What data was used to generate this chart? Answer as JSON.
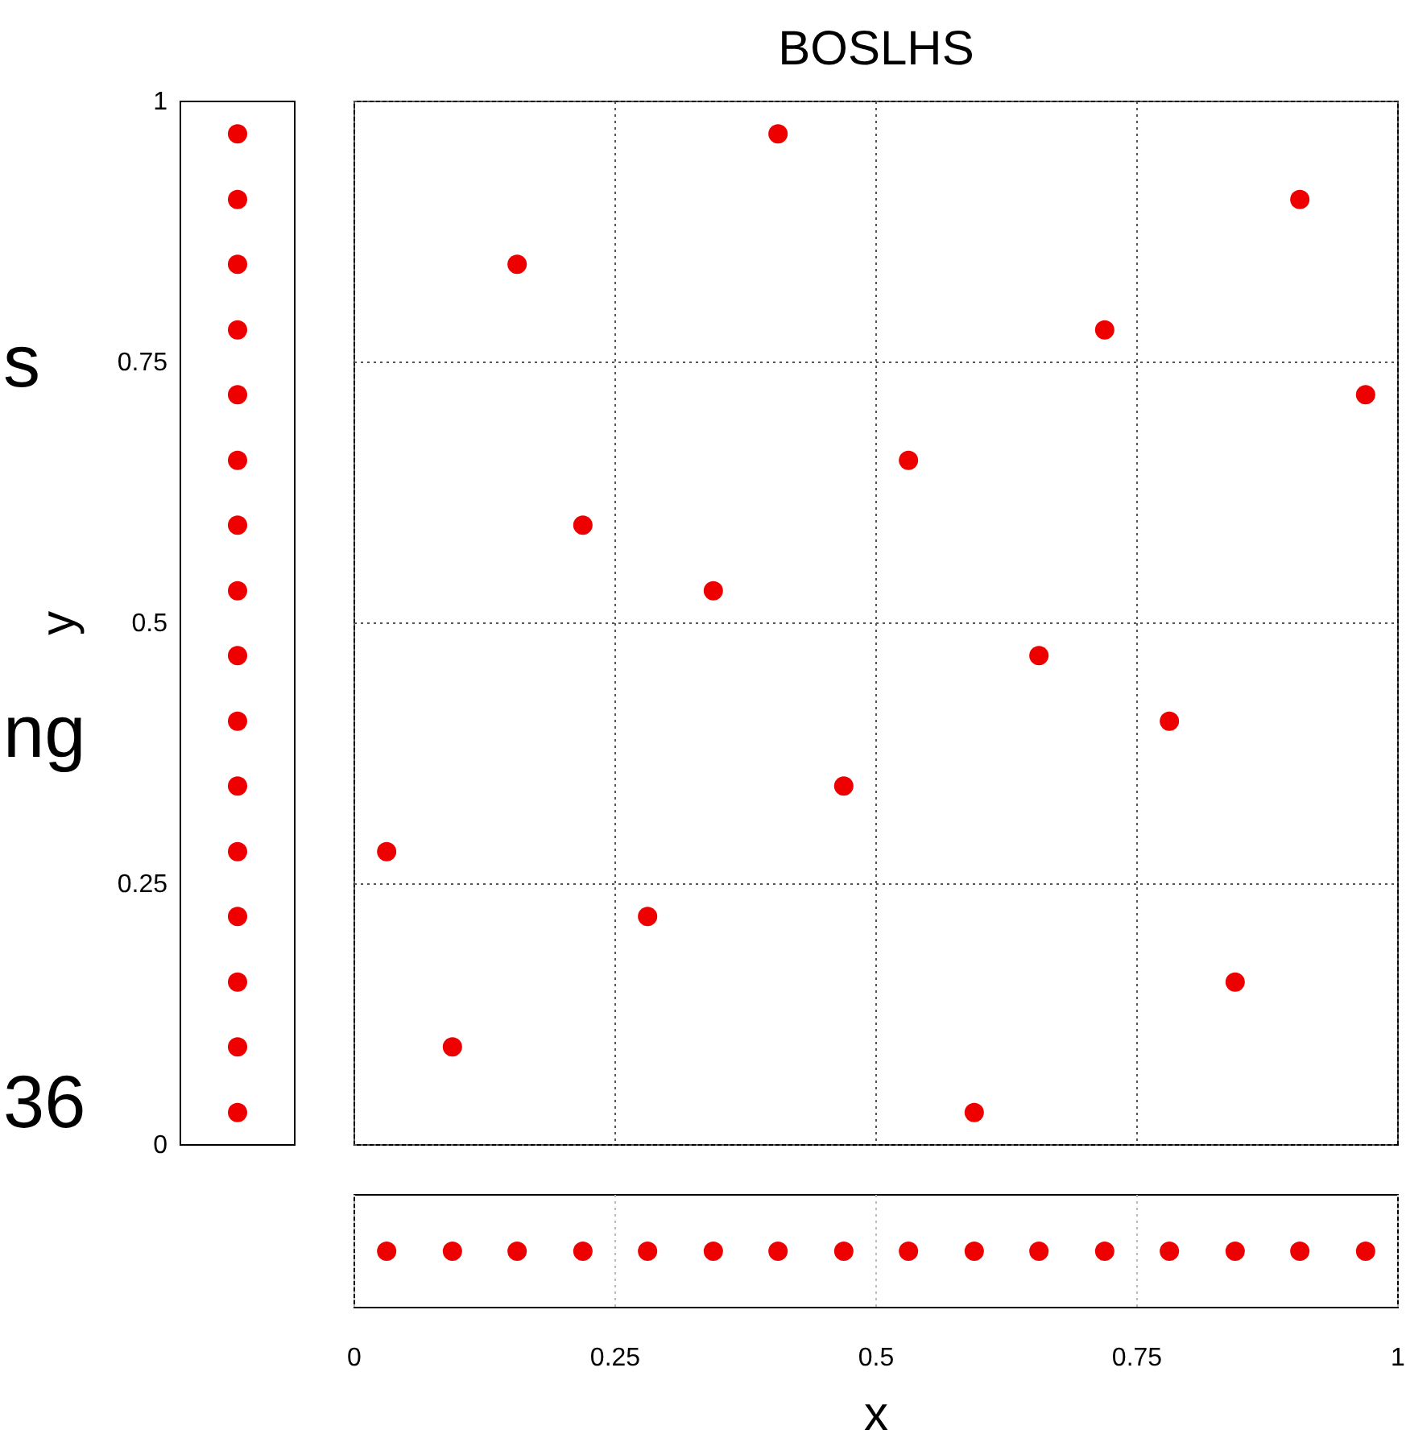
{
  "chart_data": {
    "type": "scatter",
    "title": "BOSLHS",
    "xlabel": "x",
    "ylabel": "y",
    "annotations": [
      "s",
      "ng",
      "36"
    ],
    "x": [
      0.031,
      0.094,
      0.156,
      0.219,
      0.281,
      0.344,
      0.406,
      0.469,
      0.531,
      0.594,
      0.656,
      0.719,
      0.781,
      0.844,
      0.906,
      0.969
    ],
    "series": [
      {
        "color": "#ee0000",
        "values": [
          0.281,
          0.094,
          0.844,
          0.594,
          0.219,
          0.531,
          0.969,
          0.344,
          0.656,
          0.031,
          0.469,
          0.781,
          0.406,
          0.156,
          0.906,
          0.719
        ]
      }
    ],
    "xlim": [
      0,
      1
    ],
    "ylim": [
      0,
      1
    ],
    "xticks": [
      0,
      {
        "value": 0.25,
        "label": "0.25"
      },
      {
        "value": 0.5,
        "label": "0.5"
      },
      {
        "value": 0.75,
        "label": "0.75"
      },
      1
    ],
    "yticks": [
      0,
      {
        "value": 0.25,
        "label": "0.25"
      },
      {
        "value": 0.5,
        "label": "0.5"
      },
      {
        "value": 0.75,
        "label": "0.75"
      },
      1
    ],
    "grid": true,
    "marker": "circle"
  }
}
